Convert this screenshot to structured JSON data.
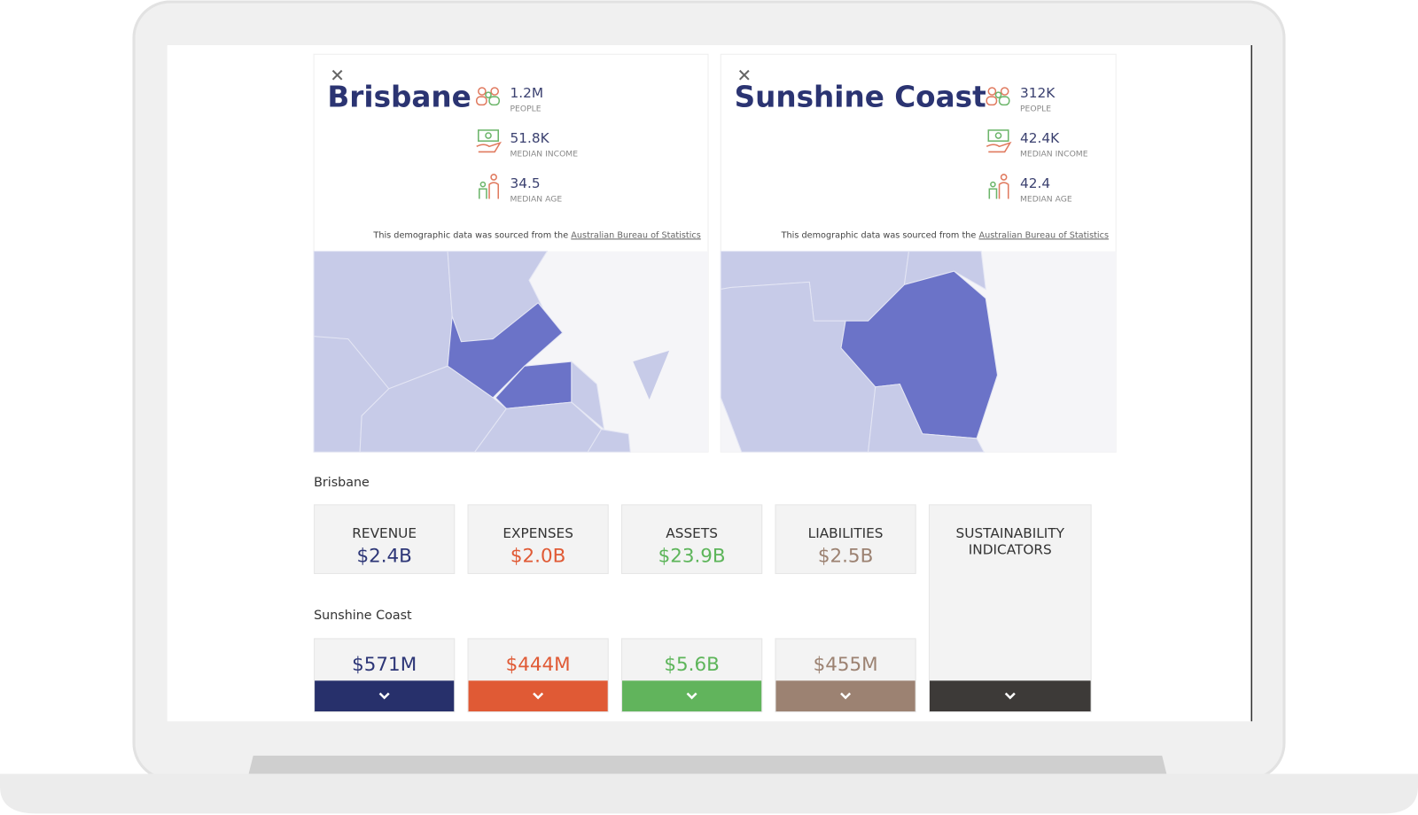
{
  "cities": [
    {
      "name": "Brisbane",
      "stats": [
        {
          "value": "1.2M",
          "label": "PEOPLE"
        },
        {
          "value": "51.8K",
          "label": "MEDIAN INCOME"
        },
        {
          "value": "34.5",
          "label": "MEDIAN AGE"
        }
      ],
      "source": "This demographic data was sourced from the",
      "source_link": "Australian Bureau of Statistics"
    },
    {
      "name": "Sunshine Coast",
      "stats": [
        {
          "value": "312K",
          "label": "PEOPLE"
        },
        {
          "value": "42.4K",
          "label": "MEDIAN INCOME"
        },
        {
          "value": "42.4",
          "label": "MEDIAN AGE"
        }
      ],
      "source": "This demographic data was sourced from the",
      "source_link": "Australian Bureau of Statistics"
    }
  ],
  "finance": {
    "columns": [
      "REVENUE",
      "EXPENSES",
      "ASSETS",
      "LIABILITIES",
      "SUSTAINABILITY INDICATORS"
    ],
    "groups": [
      {
        "name": "Brisbane",
        "values": [
          "$2.4B",
          "$2.0B",
          "$23.9B",
          "$2.5B"
        ]
      },
      {
        "name": "Sunshine Coast",
        "values": [
          "$571M",
          "$444M",
          "$5.6B",
          "$455M"
        ]
      }
    ]
  }
}
